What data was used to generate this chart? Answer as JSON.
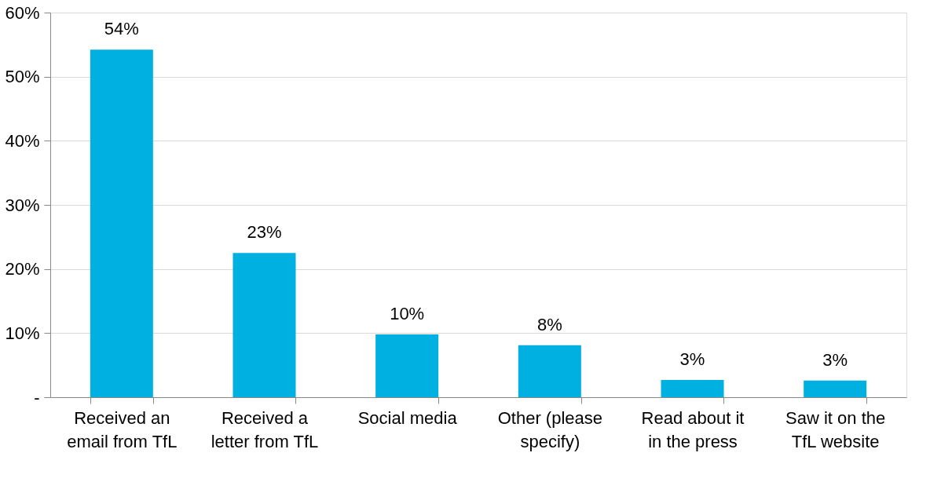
{
  "chart_data": {
    "type": "bar",
    "categories": [
      "Received an email from TfL",
      "Received a letter from TfL",
      "Social media",
      "Other (please specify)",
      "Read about it in the press",
      "Saw it on the TfL website"
    ],
    "values": [
      54.2,
      22.5,
      9.8,
      8.1,
      2.7,
      2.6
    ],
    "value_labels": [
      "54%",
      "23%",
      "10%",
      "8%",
      "3%",
      "3%"
    ],
    "color": "#00b0e0",
    "ylim": [
      0,
      60
    ],
    "yticks": [
      {
        "value": 0,
        "label": "-"
      },
      {
        "value": 10,
        "label": "10%"
      },
      {
        "value": 20,
        "label": "20%"
      },
      {
        "value": 30,
        "label": "30%"
      },
      {
        "value": 40,
        "label": "40%"
      },
      {
        "value": 50,
        "label": "50%"
      },
      {
        "value": 60,
        "label": "60%"
      }
    ],
    "grid": "y"
  }
}
